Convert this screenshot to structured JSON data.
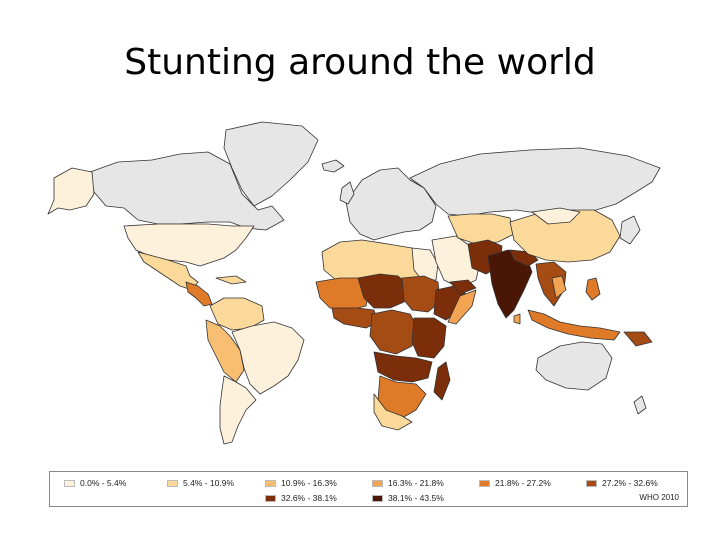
{
  "title": "Stunting around the world",
  "colors": {
    "no_data": "#e6e6e6",
    "border": "#333333",
    "cat1": "#fdf1dc",
    "cat2": "#fbd99a",
    "cat3": "#f8bf73",
    "cat4": "#f2a452",
    "cat5": "#de7a28",
    "cat6": "#a54b14",
    "cat7": "#7c2e0a",
    "cat8": "#4a1606"
  },
  "legend": {
    "items": [
      {
        "label": "0.0% - 5.4%",
        "color": "#fdf1dc"
      },
      {
        "label": "5.4% - 10.9%",
        "color": "#fbd99a"
      },
      {
        "label": "10.9% - 16.3%",
        "color": "#f8bf73"
      },
      {
        "label": "16.3% - 21.8%",
        "color": "#f2a452"
      },
      {
        "label": "21.8% - 27.2%",
        "color": "#de7a28"
      },
      {
        "label": "27.2% - 32.6%",
        "color": "#a54b14"
      },
      {
        "label": "32.6% - 38.1%",
        "color": "#7c2e0a"
      },
      {
        "label": "38.1% - 43.5%",
        "color": "#4a1606"
      }
    ],
    "source": "WHO 2010"
  }
}
